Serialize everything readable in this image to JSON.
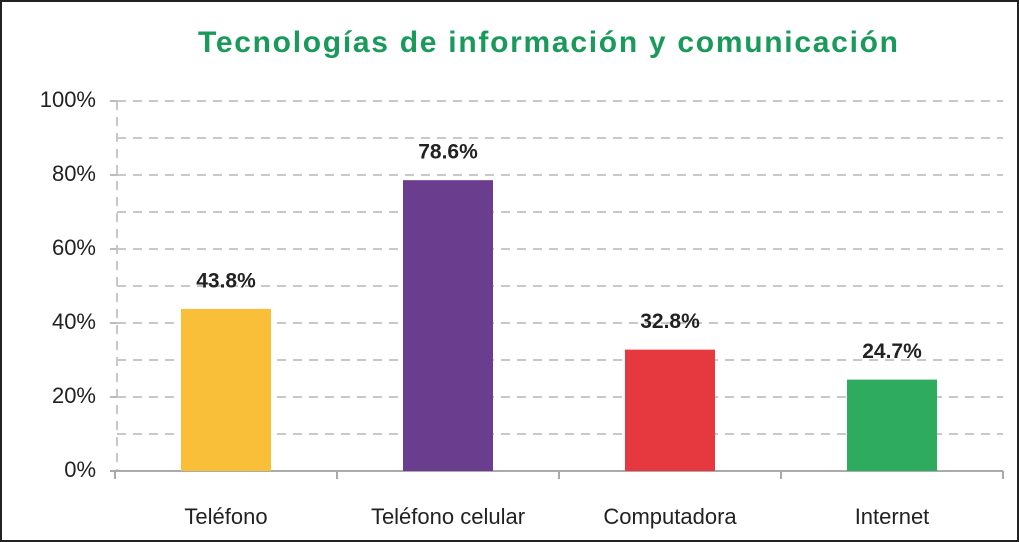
{
  "chart_data": {
    "type": "bar",
    "title": "Tecnologías de información y comunicación",
    "categories": [
      "Teléfono",
      "Teléfono celular",
      "Computadora",
      "Internet"
    ],
    "values": [
      43.8,
      78.6,
      32.8,
      24.7
    ],
    "value_labels": [
      "43.8%",
      "78.6%",
      "32.8%",
      "24.7%"
    ],
    "colors": [
      "#f9bf38",
      "#6a3d8e",
      "#e5393f",
      "#2eab5f"
    ],
    "ylim": [
      0,
      100
    ],
    "yticks": [
      {
        "value": 0,
        "label": "0%"
      },
      {
        "value": 20,
        "label": "20%"
      },
      {
        "value": 40,
        "label": "40%"
      },
      {
        "value": 60,
        "label": "60%"
      },
      {
        "value": 80,
        "label": "80%"
      },
      {
        "value": 100,
        "label": "100%"
      }
    ],
    "minor_yticks": [
      10,
      30,
      50,
      70,
      90
    ],
    "grid": true
  }
}
